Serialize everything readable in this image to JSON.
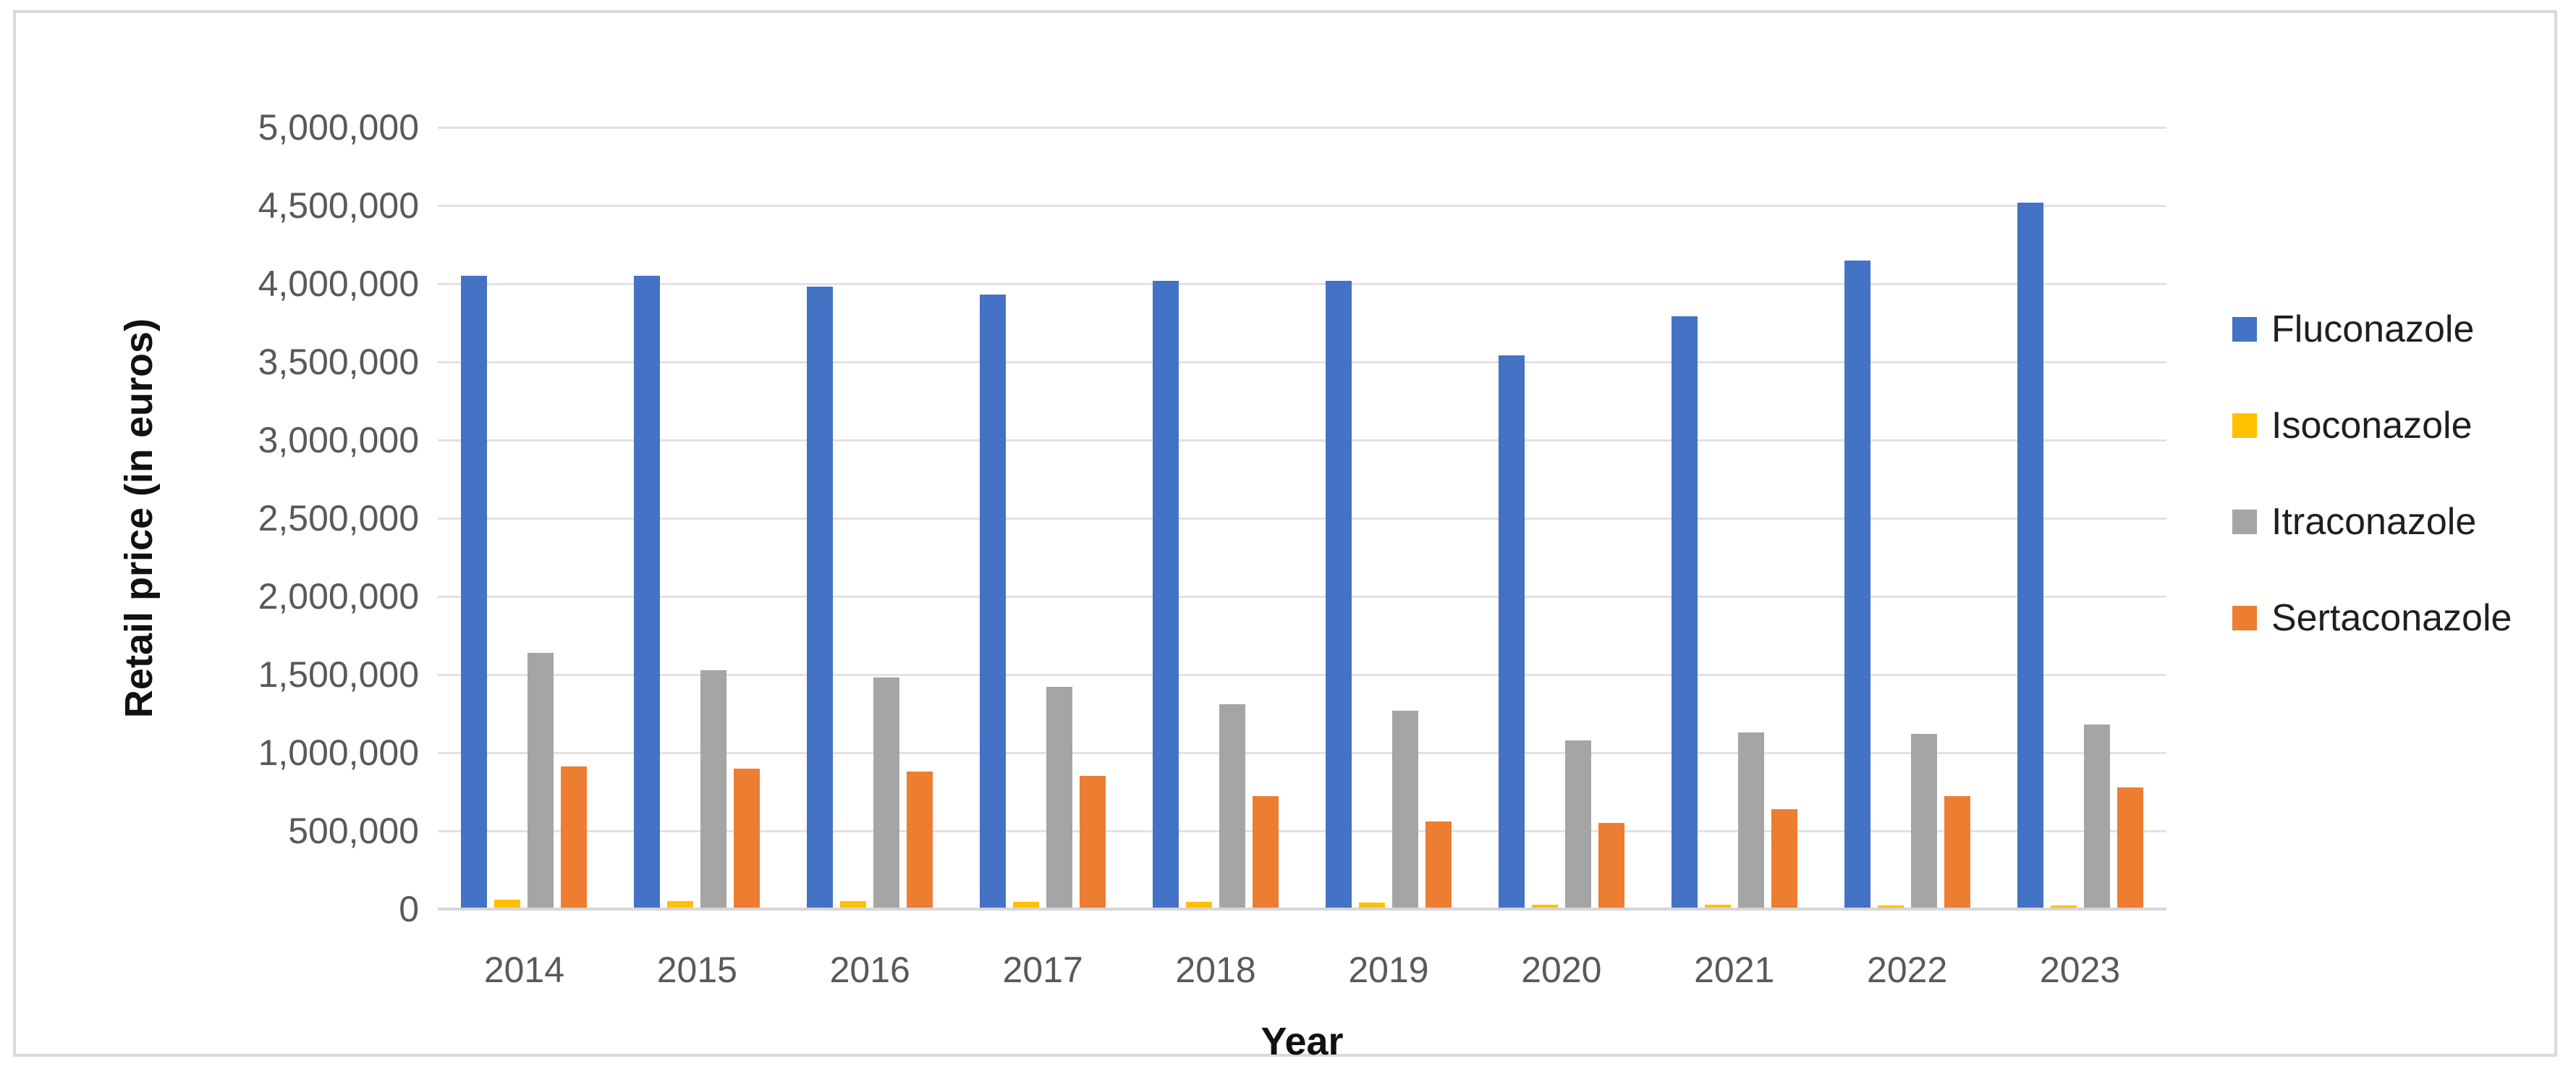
{
  "chart_data": {
    "type": "bar",
    "title": "",
    "xlabel": "Year",
    "ylabel": "Retail price (in euros)",
    "categories": [
      "2014",
      "2015",
      "2016",
      "2017",
      "2018",
      "2019",
      "2020",
      "2021",
      "2022",
      "2023"
    ],
    "series": [
      {
        "name": "Fluconazole",
        "color": "#4472C4",
        "values": [
          4050000,
          4050000,
          3980000,
          3930000,
          4020000,
          4020000,
          3540000,
          3790000,
          4150000,
          4520000
        ]
      },
      {
        "name": "Isoconazole",
        "color": "#FFC000",
        "values": [
          60000,
          50000,
          50000,
          45000,
          45000,
          40000,
          30000,
          30000,
          25000,
          25000
        ]
      },
      {
        "name": "Itraconazole",
        "color": "#A5A5A5",
        "values": [
          1640000,
          1530000,
          1480000,
          1420000,
          1310000,
          1270000,
          1080000,
          1130000,
          1120000,
          1180000
        ]
      },
      {
        "name": "Sertaconazole",
        "color": "#ED7D31",
        "values": [
          910000,
          900000,
          880000,
          850000,
          720000,
          560000,
          550000,
          640000,
          720000,
          780000
        ]
      }
    ],
    "ylim": [
      0,
      5000000
    ],
    "ytick_step": 500000,
    "ytick_labels": [
      "0",
      "500,000",
      "1,000,000",
      "1,500,000",
      "2,000,000",
      "2,500,000",
      "3,000,000",
      "3,500,000",
      "4,000,000",
      "4,500,000",
      "5,000,000"
    ],
    "grid": true,
    "legend_position": "right"
  },
  "colors": {
    "chart_border": "#D9D9D9",
    "gridline": "#E2E2E2",
    "axis_line": "#D6D6D6",
    "tick_text": "#595959",
    "axis_title_text": "#111111",
    "legend_text": "#1f1f1f",
    "background": "#FFFFFF"
  }
}
